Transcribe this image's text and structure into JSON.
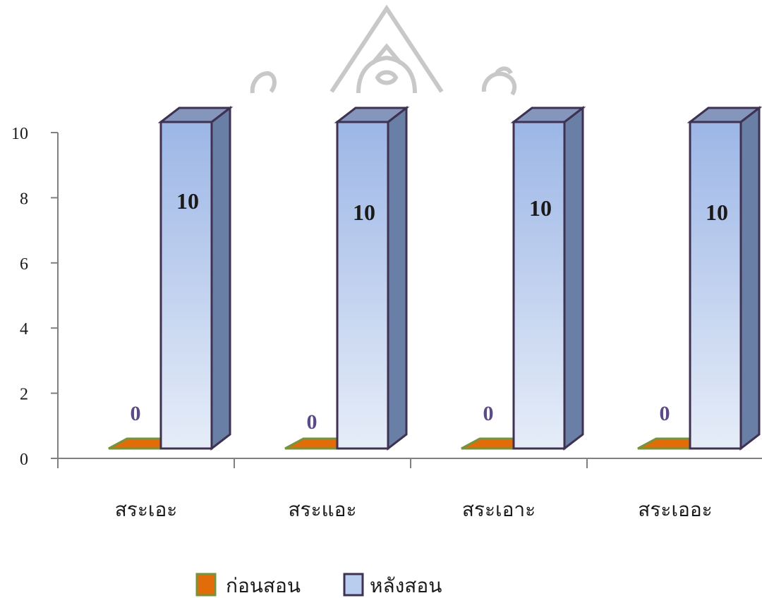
{
  "chart_data": {
    "type": "bar",
    "categories": [
      "สระเอะ",
      "สระแอะ",
      "สระเอาะ",
      "สระเออะ"
    ],
    "series": [
      {
        "name": "ก่อนสอน",
        "values": [
          0,
          0,
          0,
          0
        ],
        "color": "#e36c0a",
        "edge_color": "#77933c"
      },
      {
        "name": "หลังสอน",
        "values": [
          10,
          10,
          10,
          10
        ],
        "color": "#b9cdee",
        "edge_color": "#3f3151"
      }
    ],
    "yticks": [
      0,
      2,
      4,
      6,
      8,
      10
    ],
    "ylim": [
      0,
      10
    ],
    "legend_position": "bottom",
    "grid": false,
    "watermark": "university-seal-icon"
  }
}
